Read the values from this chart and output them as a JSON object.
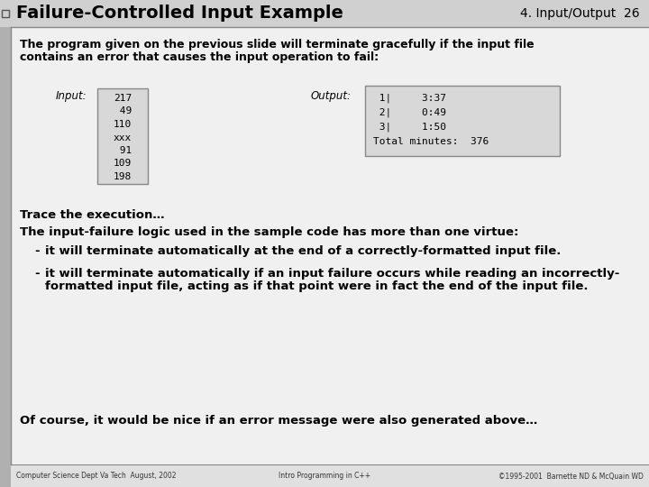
{
  "title": "Failure-Controlled Input Example",
  "subtitle_right": "4. Input/Output  26",
  "bg_color": "#c8c8c8",
  "slide_bg": "#e8e8e8",
  "content_bg": "#f0f0f0",
  "body_text1_line1": "The program given on the previous slide will terminate gracefully if the input file",
  "body_text1_line2": "contains an error that causes the input operation to fail:",
  "input_label": "Input:",
  "input_values": [
    "217",
    " 49",
    "110",
    "xxx",
    " 91",
    "109",
    "198"
  ],
  "output_label": "Output:",
  "output_values": [
    " 1|     3:37",
    " 2|     0:49",
    " 3|     1:50",
    "Total minutes:  376"
  ],
  "trace_text": "Trace the execution…",
  "virtue_text": "The input-failure logic used in the sample code has more than one virtue:",
  "bullet1": "it will terminate automatically at the end of a correctly-formatted input file.",
  "bullet2_line1": "it will terminate automatically if an input failure occurs while reading an incorrectly-",
  "bullet2_line2": "formatted input file, acting as if that point were in fact the end of the input file.",
  "conclusion": "Of course, it would be nice if an error message were also generated above…",
  "footer_left": "Computer Science Dept Va Tech  August, 2002",
  "footer_center": "Intro Programming in C++",
  "footer_right": "©1995-2001  Barnette ND & McQuain WD",
  "title_color": "#000000",
  "text_color": "#000000",
  "box_bg": "#d8d8d8",
  "box_edge": "#888888"
}
